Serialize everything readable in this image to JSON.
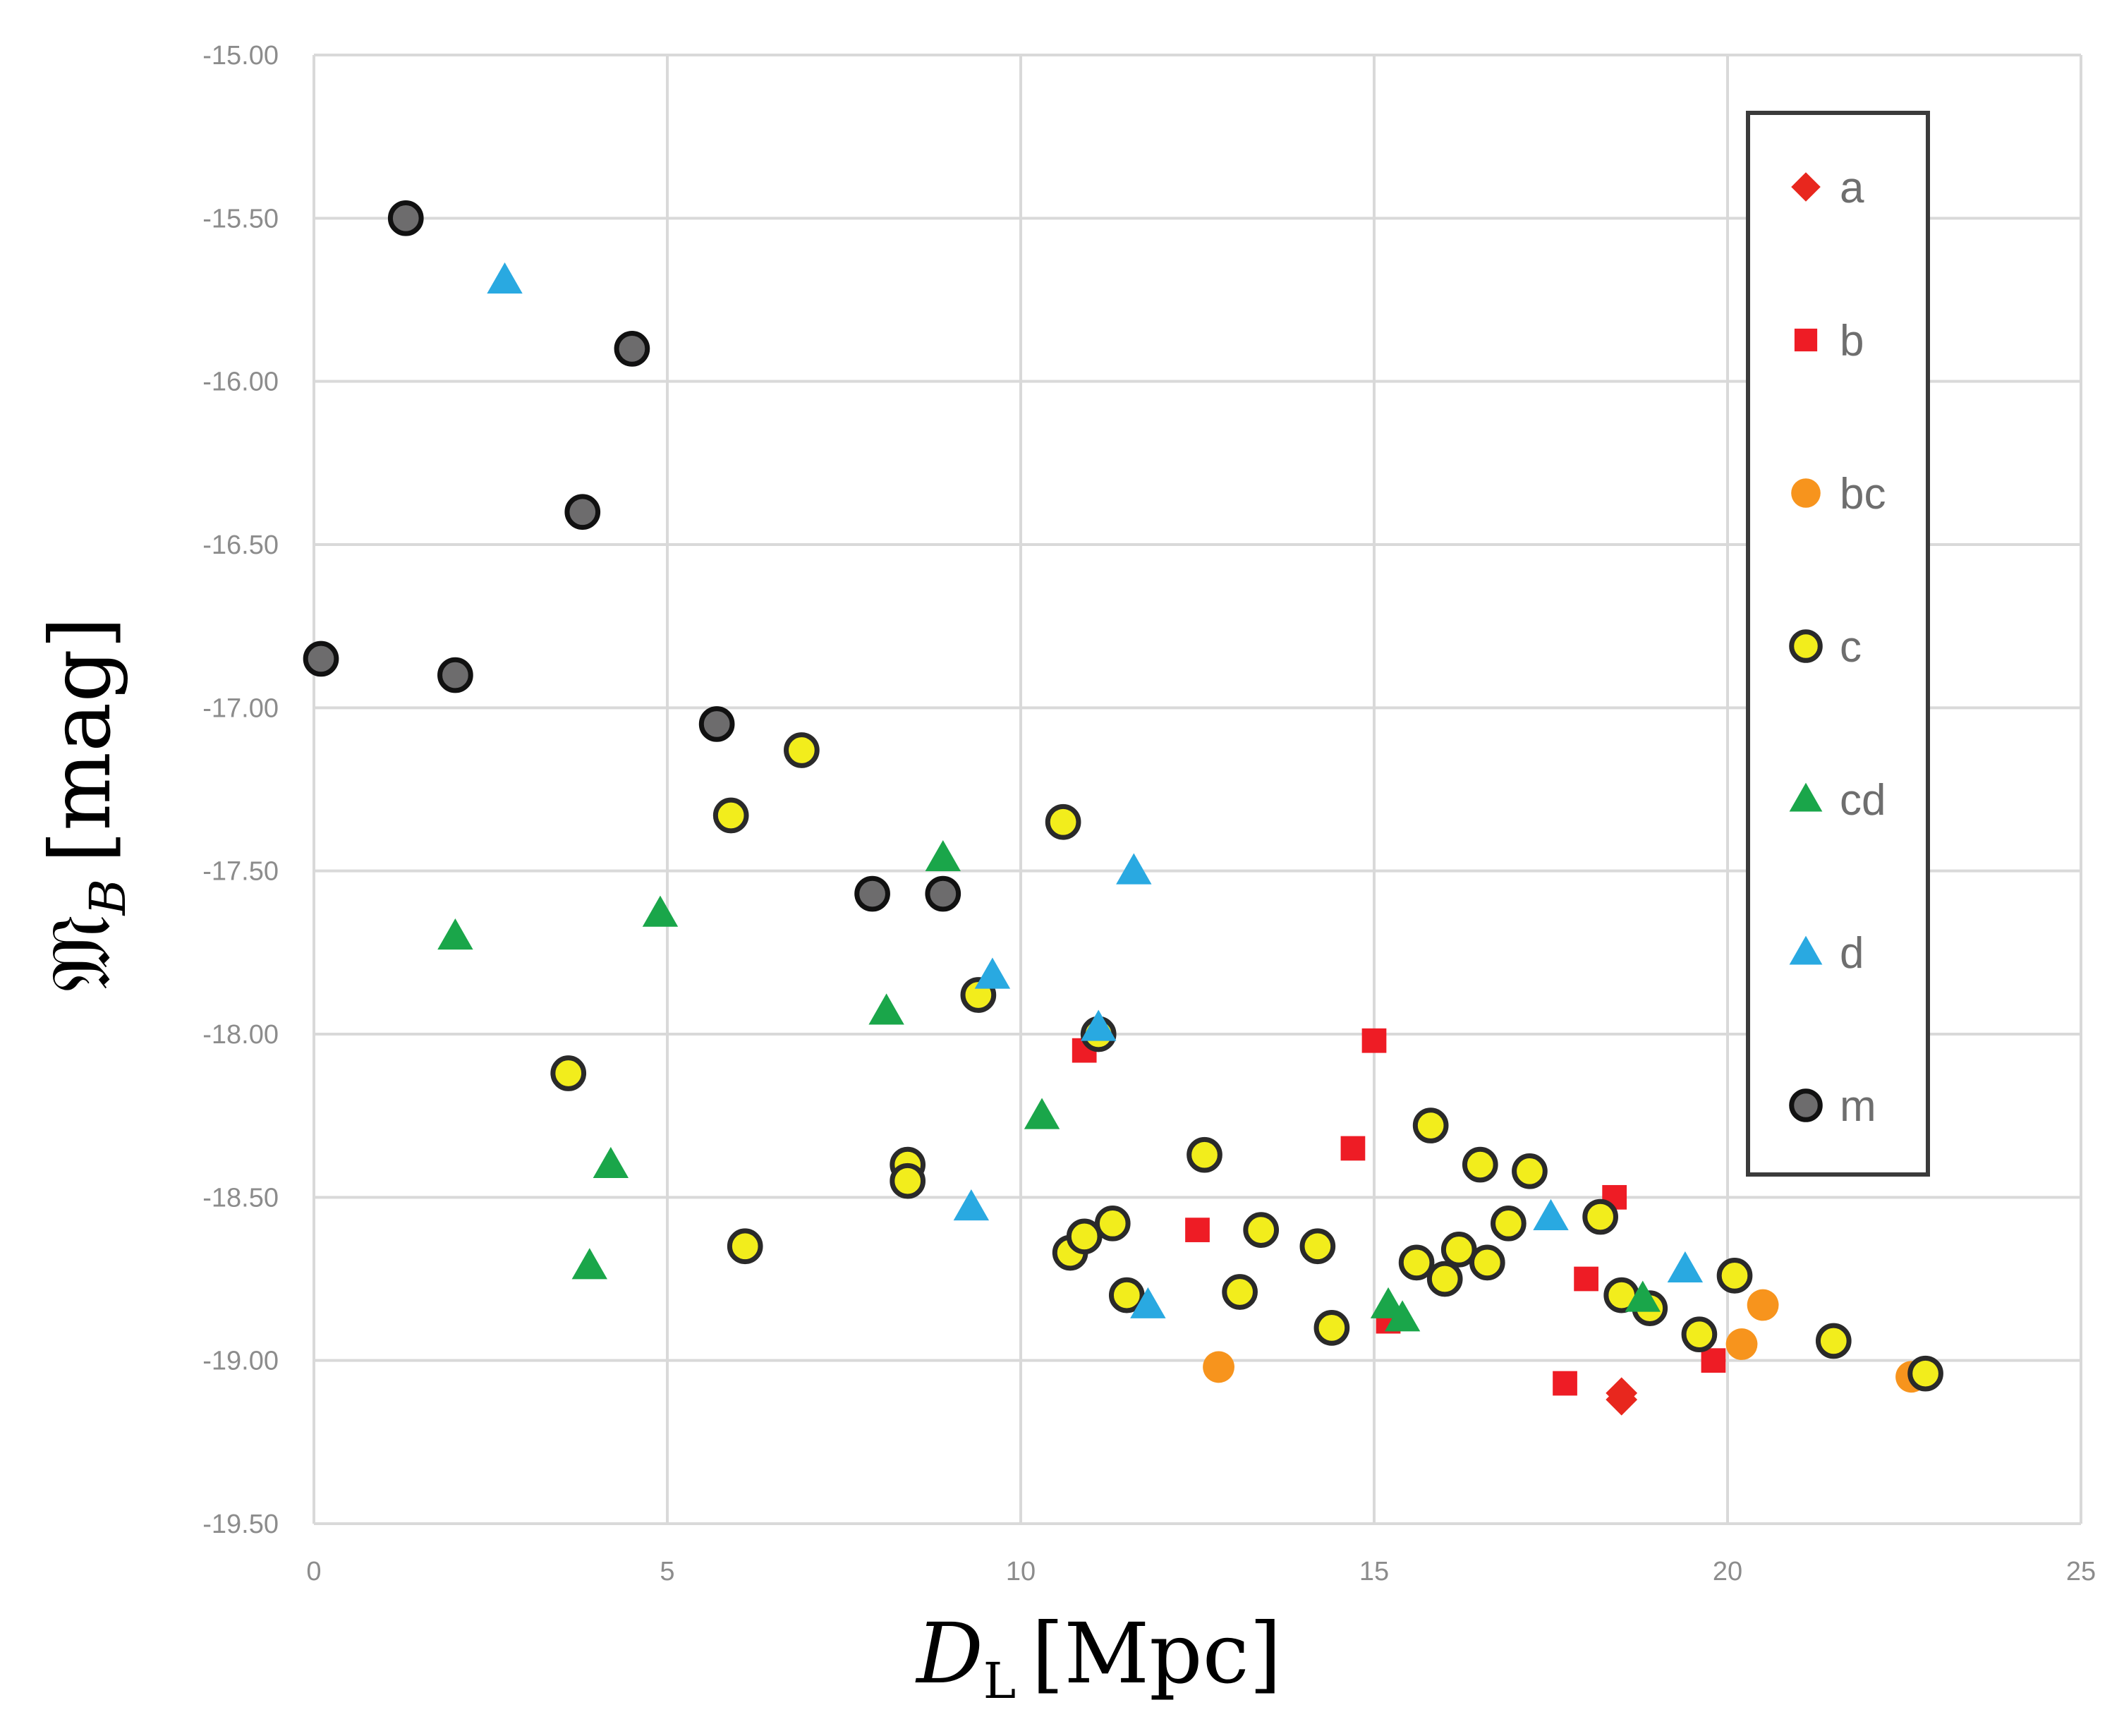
{
  "chart_data": {
    "type": "scatter",
    "title": "",
    "xlabel": "D",
    "xlabel_sub": "L",
    "xlabel_unit": "[Mpc]",
    "ylabel": "𝔐",
    "ylabel_sub": "B",
    "ylabel_unit": "[mag]",
    "xlim": [
      0,
      25
    ],
    "ylim": [
      -15.0,
      -19.5
    ],
    "x_ticks": [
      0,
      5,
      10,
      15,
      20,
      25
    ],
    "x_tick_labels": [
      "0",
      "5",
      "10",
      "15",
      "20",
      "25"
    ],
    "y_ticks": [
      -15.0,
      -15.5,
      -16.0,
      -16.5,
      -17.0,
      -17.5,
      -18.0,
      -18.5,
      -19.0,
      -19.5
    ],
    "y_tick_labels": [
      "-15.00",
      "-15.50",
      "-16.00",
      "-16.50",
      "-17.00",
      "-17.50",
      "-18.00",
      "-18.50",
      "-19.00",
      "-19.50"
    ],
    "grid": true,
    "legend_position": "top-right",
    "series": [
      {
        "name": "a",
        "marker": "diamond",
        "color": "#e8271e",
        "outline": "none",
        "points": [
          [
            18.5,
            -19.1
          ],
          [
            18.5,
            -19.12
          ]
        ]
      },
      {
        "name": "b",
        "marker": "square",
        "color": "#ee1c25",
        "outline": "none",
        "points": [
          [
            10.9,
            -18.05
          ],
          [
            12.5,
            -18.6
          ],
          [
            14.7,
            -18.35
          ],
          [
            15.0,
            -18.02
          ],
          [
            15.2,
            -18.88
          ],
          [
            17.7,
            -19.07
          ],
          [
            18.0,
            -18.75
          ],
          [
            18.4,
            -18.5
          ],
          [
            19.8,
            -19.0
          ]
        ]
      },
      {
        "name": "bc",
        "marker": "circle",
        "color": "#f7941d",
        "outline": "none",
        "points": [
          [
            12.8,
            -19.02
          ],
          [
            20.2,
            -18.95
          ],
          [
            20.5,
            -18.83
          ],
          [
            22.6,
            -19.05
          ]
        ]
      },
      {
        "name": "c",
        "marker": "circle",
        "color": "#f2ed1c",
        "outline": "#2a2a2a",
        "points": [
          [
            3.6,
            -18.12
          ],
          [
            5.9,
            -17.33
          ],
          [
            6.1,
            -18.65
          ],
          [
            6.9,
            -17.13
          ],
          [
            8.4,
            -18.4
          ],
          [
            8.4,
            -18.45
          ],
          [
            9.4,
            -17.88
          ],
          [
            10.6,
            -17.35
          ],
          [
            10.7,
            -18.67
          ],
          [
            10.9,
            -18.62
          ],
          [
            11.1,
            -18.0
          ],
          [
            11.3,
            -18.58
          ],
          [
            11.5,
            -18.8
          ],
          [
            12.6,
            -18.37
          ],
          [
            13.1,
            -18.79
          ],
          [
            13.4,
            -18.6
          ],
          [
            14.2,
            -18.65
          ],
          [
            14.4,
            -18.9
          ],
          [
            15.6,
            -18.7
          ],
          [
            15.8,
            -18.28
          ],
          [
            16.0,
            -18.75
          ],
          [
            16.2,
            -18.66
          ],
          [
            16.5,
            -18.4
          ],
          [
            16.6,
            -18.7
          ],
          [
            16.9,
            -18.58
          ],
          [
            17.2,
            -18.42
          ],
          [
            18.2,
            -18.56
          ],
          [
            18.5,
            -18.8
          ],
          [
            18.9,
            -18.84
          ],
          [
            19.6,
            -18.92
          ],
          [
            20.1,
            -18.74
          ],
          [
            21.5,
            -18.94
          ],
          [
            22.8,
            -19.04
          ]
        ]
      },
      {
        "name": "cd",
        "marker": "triangle",
        "color": "#1aa64a",
        "outline": "none",
        "points": [
          [
            2.0,
            -17.7
          ],
          [
            3.9,
            -18.71
          ],
          [
            4.2,
            -18.4
          ],
          [
            4.9,
            -17.63
          ],
          [
            8.1,
            -17.93
          ],
          [
            8.9,
            -17.46
          ],
          [
            10.3,
            -18.25
          ],
          [
            15.2,
            -18.83
          ],
          [
            15.4,
            -18.87
          ],
          [
            18.8,
            -18.81
          ]
        ]
      },
      {
        "name": "d",
        "marker": "triangle",
        "color": "#29a9e1",
        "outline": "none",
        "points": [
          [
            2.7,
            -15.69
          ],
          [
            9.3,
            -18.53
          ],
          [
            9.6,
            -17.82
          ],
          [
            11.1,
            -17.98
          ],
          [
            11.6,
            -17.5
          ],
          [
            11.8,
            -18.83
          ],
          [
            17.5,
            -18.56
          ],
          [
            19.4,
            -18.72
          ]
        ]
      },
      {
        "name": "m",
        "marker": "circle",
        "color": "#6d6c6d",
        "outline": "#111111",
        "points": [
          [
            0.1,
            -16.85
          ],
          [
            1.3,
            -15.5
          ],
          [
            2.0,
            -16.9
          ],
          [
            3.8,
            -16.4
          ],
          [
            4.5,
            -15.9
          ],
          [
            5.7,
            -17.05
          ],
          [
            7.9,
            -17.57
          ],
          [
            8.9,
            -17.57
          ]
        ]
      }
    ]
  }
}
